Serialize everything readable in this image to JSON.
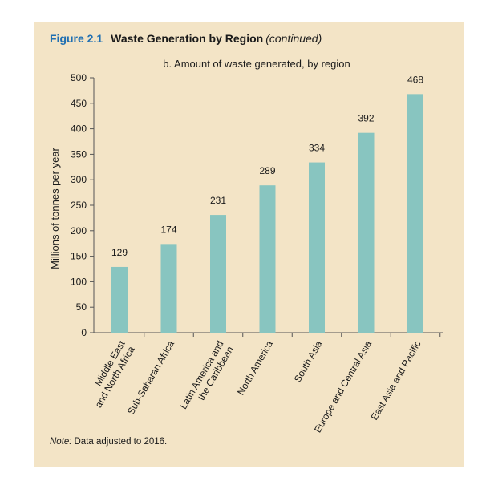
{
  "figure": {
    "label": "Figure 2.1",
    "title": "Waste Generation by Region",
    "continued": "(continued)"
  },
  "colors": {
    "panel_background": "#f3e4c6",
    "bar": "#88c5c0",
    "figure_label": "#1f6fb2",
    "text": "#1a1a1a"
  },
  "chart_data": {
    "type": "bar",
    "subtitle": "b. Amount of waste generated, by region",
    "ylabel": "Millions of tonnes per year",
    "xlabel": "",
    "categories": [
      [
        "Middle East",
        "and North Africa"
      ],
      [
        "Sub-Saharan Africa"
      ],
      [
        "Latin America and",
        "the Caribbean"
      ],
      [
        "North America"
      ],
      [
        "South Asia"
      ],
      [
        "Europe and Central Asia"
      ],
      [
        "East Asia and Pacific"
      ]
    ],
    "values": [
      129,
      174,
      231,
      289,
      334,
      392,
      468
    ],
    "data_labels": [
      "129",
      "174",
      "231",
      "289",
      "334",
      "392",
      "468"
    ],
    "ylim": [
      0,
      500
    ],
    "yticks": [
      0,
      50,
      100,
      150,
      200,
      250,
      300,
      350,
      400,
      450,
      500
    ],
    "grid": false,
    "legend": "none"
  },
  "note": {
    "prefix": "Note:",
    "text": "Data adjusted to 2016."
  }
}
